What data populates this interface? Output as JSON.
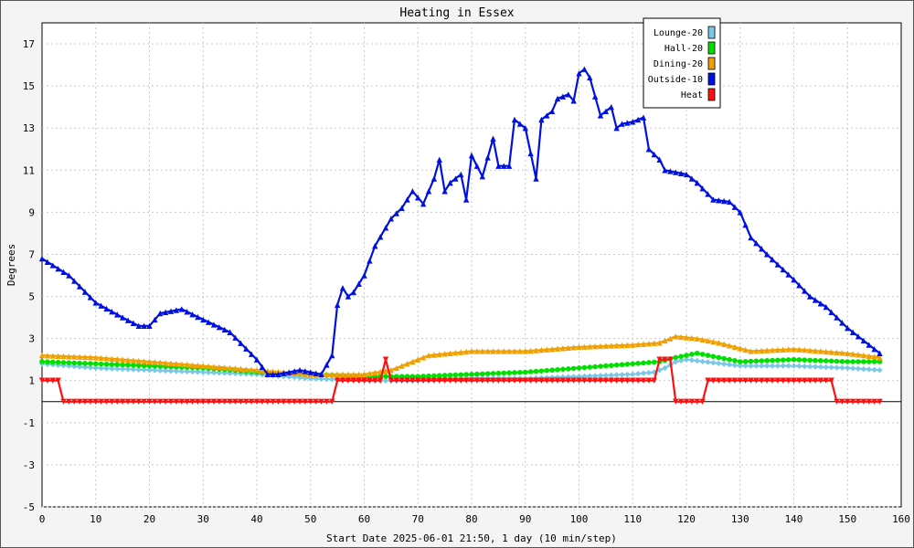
{
  "chart_data": {
    "type": "line",
    "title": "Heating in Essex",
    "xlabel": "Start Date 2025-06-01 21:50, 1 day (10 min/step)",
    "ylabel": "Degrees",
    "xlim": [
      0,
      160
    ],
    "ylim": [
      -5,
      18
    ],
    "x_ticks": [
      0,
      10,
      20,
      30,
      40,
      50,
      60,
      70,
      80,
      90,
      100,
      110,
      120,
      130,
      140,
      150,
      160
    ],
    "y_ticks": [
      -5,
      -3,
      -1,
      1,
      3,
      5,
      7,
      9,
      11,
      13,
      15,
      17
    ],
    "grid": true,
    "legend_position": "top-right",
    "series": [
      {
        "name": "Lounge-20",
        "color": "#7ac8e8",
        "marker": "diamond",
        "points": [
          [
            0,
            1.8
          ],
          [
            10,
            1.6
          ],
          [
            20,
            1.5
          ],
          [
            30,
            1.4
          ],
          [
            40,
            1.3
          ],
          [
            50,
            1.1
          ],
          [
            60,
            1.0
          ],
          [
            70,
            1.0
          ],
          [
            80,
            1.1
          ],
          [
            90,
            1.1
          ],
          [
            100,
            1.2
          ],
          [
            110,
            1.3
          ],
          [
            114,
            1.4
          ],
          [
            116,
            1.6
          ],
          [
            118,
            1.9
          ],
          [
            120,
            2.0
          ],
          [
            130,
            1.7
          ],
          [
            140,
            1.7
          ],
          [
            150,
            1.6
          ],
          [
            156,
            1.5
          ]
        ]
      },
      {
        "name": "Hall-20",
        "color": "#00e000",
        "marker": "circle",
        "points": [
          [
            0,
            1.9
          ],
          [
            10,
            1.8
          ],
          [
            20,
            1.7
          ],
          [
            30,
            1.6
          ],
          [
            40,
            1.4
          ],
          [
            50,
            1.3
          ],
          [
            60,
            1.2
          ],
          [
            70,
            1.2
          ],
          [
            80,
            1.3
          ],
          [
            90,
            1.4
          ],
          [
            100,
            1.6
          ],
          [
            110,
            1.8
          ],
          [
            115,
            1.9
          ],
          [
            118,
            2.1
          ],
          [
            122,
            2.3
          ],
          [
            130,
            1.9
          ],
          [
            140,
            2.0
          ],
          [
            150,
            1.9
          ],
          [
            156,
            1.9
          ]
        ]
      },
      {
        "name": "Dining-20",
        "color": "#f0a000",
        "marker": "triangle",
        "points": [
          [
            0,
            2.2
          ],
          [
            10,
            2.1
          ],
          [
            20,
            1.9
          ],
          [
            30,
            1.7
          ],
          [
            40,
            1.5
          ],
          [
            50,
            1.3
          ],
          [
            55,
            1.3
          ],
          [
            60,
            1.3
          ],
          [
            65,
            1.5
          ],
          [
            68,
            1.8
          ],
          [
            72,
            2.2
          ],
          [
            80,
            2.4
          ],
          [
            90,
            2.4
          ],
          [
            100,
            2.6
          ],
          [
            110,
            2.7
          ],
          [
            115,
            2.8
          ],
          [
            118,
            3.1
          ],
          [
            122,
            3.0
          ],
          [
            126,
            2.8
          ],
          [
            132,
            2.4
          ],
          [
            140,
            2.5
          ],
          [
            150,
            2.3
          ],
          [
            156,
            2.1
          ]
        ]
      },
      {
        "name": "Outside-10",
        "color": "#0010e0",
        "marker": "triangle",
        "points": [
          [
            0,
            6.8
          ],
          [
            5,
            6.0
          ],
          [
            10,
            4.7
          ],
          [
            15,
            4.0
          ],
          [
            18,
            3.6
          ],
          [
            20,
            3.6
          ],
          [
            22,
            4.2
          ],
          [
            26,
            4.4
          ],
          [
            30,
            3.9
          ],
          [
            35,
            3.3
          ],
          [
            40,
            2.0
          ],
          [
            42,
            1.3
          ],
          [
            44,
            1.3
          ],
          [
            46,
            1.4
          ],
          [
            48,
            1.5
          ],
          [
            50,
            1.4
          ],
          [
            52,
            1.3
          ],
          [
            54,
            2.2
          ],
          [
            55,
            4.6
          ],
          [
            56,
            5.4
          ],
          [
            57,
            5.0
          ],
          [
            58,
            5.2
          ],
          [
            60,
            6.0
          ],
          [
            62,
            7.4
          ],
          [
            65,
            8.7
          ],
          [
            67,
            9.2
          ],
          [
            69,
            10.0
          ],
          [
            71,
            9.4
          ],
          [
            73,
            10.6
          ],
          [
            74,
            11.5
          ],
          [
            75,
            10.0
          ],
          [
            76,
            10.4
          ],
          [
            78,
            10.8
          ],
          [
            79,
            9.6
          ],
          [
            80,
            11.7
          ],
          [
            82,
            10.7
          ],
          [
            84,
            12.5
          ],
          [
            85,
            11.2
          ],
          [
            87,
            11.2
          ],
          [
            88,
            13.4
          ],
          [
            90,
            13.0
          ],
          [
            92,
            10.6
          ],
          [
            93,
            13.4
          ],
          [
            95,
            13.8
          ],
          [
            96,
            14.4
          ],
          [
            98,
            14.6
          ],
          [
            99,
            14.3
          ],
          [
            100,
            15.6
          ],
          [
            101,
            15.8
          ],
          [
            102,
            15.4
          ],
          [
            104,
            13.6
          ],
          [
            106,
            14.0
          ],
          [
            107,
            13.0
          ],
          [
            108,
            13.2
          ],
          [
            110,
            13.3
          ],
          [
            112,
            13.5
          ],
          [
            113,
            12.0
          ],
          [
            115,
            11.5
          ],
          [
            116,
            11.0
          ],
          [
            118,
            10.9
          ],
          [
            120,
            10.8
          ],
          [
            122,
            10.4
          ],
          [
            125,
            9.6
          ],
          [
            128,
            9.5
          ],
          [
            130,
            9.0
          ],
          [
            132,
            7.8
          ],
          [
            135,
            7.0
          ],
          [
            140,
            5.8
          ],
          [
            143,
            5.0
          ],
          [
            146,
            4.5
          ],
          [
            150,
            3.5
          ],
          [
            154,
            2.7
          ],
          [
            156,
            2.3
          ]
        ]
      },
      {
        "name": "Heat",
        "color": "#ff1010",
        "marker": "inv-triangle",
        "points": [
          [
            0,
            1.0
          ],
          [
            3,
            1.0
          ],
          [
            4,
            0.0
          ],
          [
            54,
            0.0
          ],
          [
            55,
            1.0
          ],
          [
            63,
            1.0
          ],
          [
            64,
            2.0
          ],
          [
            65,
            1.0
          ],
          [
            114,
            1.0
          ],
          [
            115,
            2.0
          ],
          [
            117,
            2.0
          ],
          [
            118,
            0.0
          ],
          [
            123,
            0.0
          ],
          [
            124,
            1.0
          ],
          [
            147,
            1.0
          ],
          [
            148,
            0.0
          ],
          [
            156,
            0.0
          ]
        ]
      }
    ]
  }
}
